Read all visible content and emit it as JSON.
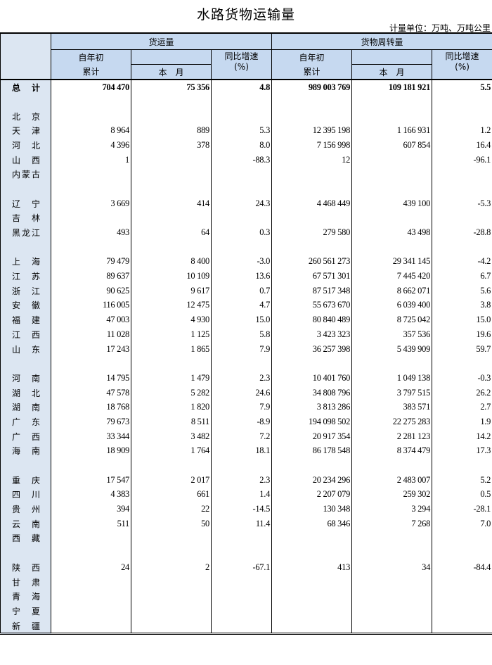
{
  "title": "水路货物运输量",
  "unit": "计量单位：万吨、万吨公里",
  "header": {
    "freight_volume": "货运量",
    "turnover": "货物周转量",
    "ytd_top": "自年初",
    "ytd_bottom": "累计",
    "month": "本　月",
    "yoy": "同比增速",
    "pct": "(%)"
  },
  "total": {
    "name": "总计",
    "values": [
      "704 470",
      "75 356",
      "4.8",
      "989 003 769",
      "109 181 921",
      "5.5"
    ]
  },
  "groups": [
    [
      {
        "name": "北京",
        "values": [
          "",
          "",
          "",
          "",
          "",
          ""
        ]
      },
      {
        "name": "天津",
        "values": [
          "8 964",
          "889",
          "5.3",
          "12 395 198",
          "1 166 931",
          "1.2"
        ]
      },
      {
        "name": "河北",
        "values": [
          "4 396",
          "378",
          "8.0",
          "7 156 998",
          "607 854",
          "16.4"
        ]
      },
      {
        "name": "山西",
        "values": [
          "1",
          "",
          "-88.3",
          "12",
          "",
          "-96.1"
        ]
      },
      {
        "name": "内蒙古",
        "values": [
          "",
          "",
          "",
          "",
          "",
          ""
        ]
      }
    ],
    [
      {
        "name": "辽宁",
        "values": [
          "3 669",
          "414",
          "24.3",
          "4 468 449",
          "439 100",
          "-5.3"
        ]
      },
      {
        "name": "吉林",
        "values": [
          "",
          "",
          "",
          "",
          "",
          ""
        ]
      },
      {
        "name": "黑龙江",
        "values": [
          "493",
          "64",
          "0.3",
          "279 580",
          "43 498",
          "-28.8"
        ]
      }
    ],
    [
      {
        "name": "上海",
        "values": [
          "79 479",
          "8 400",
          "-3.0",
          "260 561 273",
          "29 341 145",
          "-4.2"
        ]
      },
      {
        "name": "江苏",
        "values": [
          "89 637",
          "10 109",
          "13.6",
          "67 571 301",
          "7 445 420",
          "6.7"
        ]
      },
      {
        "name": "浙江",
        "values": [
          "90 625",
          "9 617",
          "0.7",
          "87 517 348",
          "8 662 071",
          "5.6"
        ]
      },
      {
        "name": "安徽",
        "values": [
          "116 005",
          "12 475",
          "4.7",
          "55 673 670",
          "6 039 400",
          "3.8"
        ]
      },
      {
        "name": "福建",
        "values": [
          "47 003",
          "4 930",
          "15.0",
          "80 840 489",
          "8 725 042",
          "15.0"
        ]
      },
      {
        "name": "江西",
        "values": [
          "11 028",
          "1 125",
          "5.8",
          "3 423 323",
          "357 536",
          "19.6"
        ]
      },
      {
        "name": "山东",
        "values": [
          "17 243",
          "1 865",
          "7.9",
          "36 257 398",
          "5 439 909",
          "59.7"
        ]
      }
    ],
    [
      {
        "name": "河南",
        "values": [
          "14 795",
          "1 479",
          "2.3",
          "10 401 760",
          "1 049 138",
          "-0.3"
        ]
      },
      {
        "name": "湖北",
        "values": [
          "47 578",
          "5 282",
          "24.6",
          "34 808 796",
          "3 797 515",
          "26.2"
        ]
      },
      {
        "name": "湖南",
        "values": [
          "18 768",
          "1 820",
          "7.9",
          "3 813 286",
          "383 571",
          "2.7"
        ]
      },
      {
        "name": "广东",
        "values": [
          "79 673",
          "8 511",
          "-8.9",
          "194 098 502",
          "22 275 283",
          "1.9"
        ]
      },
      {
        "name": "广西",
        "values": [
          "33 344",
          "3 482",
          "7.2",
          "20 917 354",
          "2 281 123",
          "14.2"
        ]
      },
      {
        "name": "海南",
        "values": [
          "18 909",
          "1 764",
          "18.1",
          "86 178 548",
          "8 374 479",
          "17.3"
        ]
      }
    ],
    [
      {
        "name": "重庆",
        "values": [
          "17 547",
          "2 017",
          "2.3",
          "20 234 296",
          "2 483 007",
          "5.2"
        ]
      },
      {
        "name": "四川",
        "values": [
          "4 383",
          "661",
          "1.4",
          "2 207 079",
          "259 302",
          "0.5"
        ]
      },
      {
        "name": "贵州",
        "values": [
          "394",
          "22",
          "-14.5",
          "130 348",
          "3 294",
          "-28.1"
        ]
      },
      {
        "name": "云南",
        "values": [
          "511",
          "50",
          "11.4",
          "68 346",
          "7 268",
          "7.0"
        ]
      },
      {
        "name": "西藏",
        "values": [
          "",
          "",
          "",
          "",
          "",
          ""
        ]
      }
    ],
    [
      {
        "name": "陕西",
        "values": [
          "24",
          "2",
          "-67.1",
          "413",
          "34",
          "-84.4"
        ]
      },
      {
        "name": "甘肃",
        "values": [
          "",
          "",
          "",
          "",
          "",
          ""
        ]
      },
      {
        "name": "青海",
        "values": [
          "",
          "",
          "",
          "",
          "",
          ""
        ]
      },
      {
        "name": "宁夏",
        "values": [
          "",
          "",
          "",
          "",
          "",
          ""
        ]
      },
      {
        "name": "新疆",
        "values": [
          "",
          "",
          "",
          "",
          "",
          ""
        ]
      }
    ]
  ]
}
